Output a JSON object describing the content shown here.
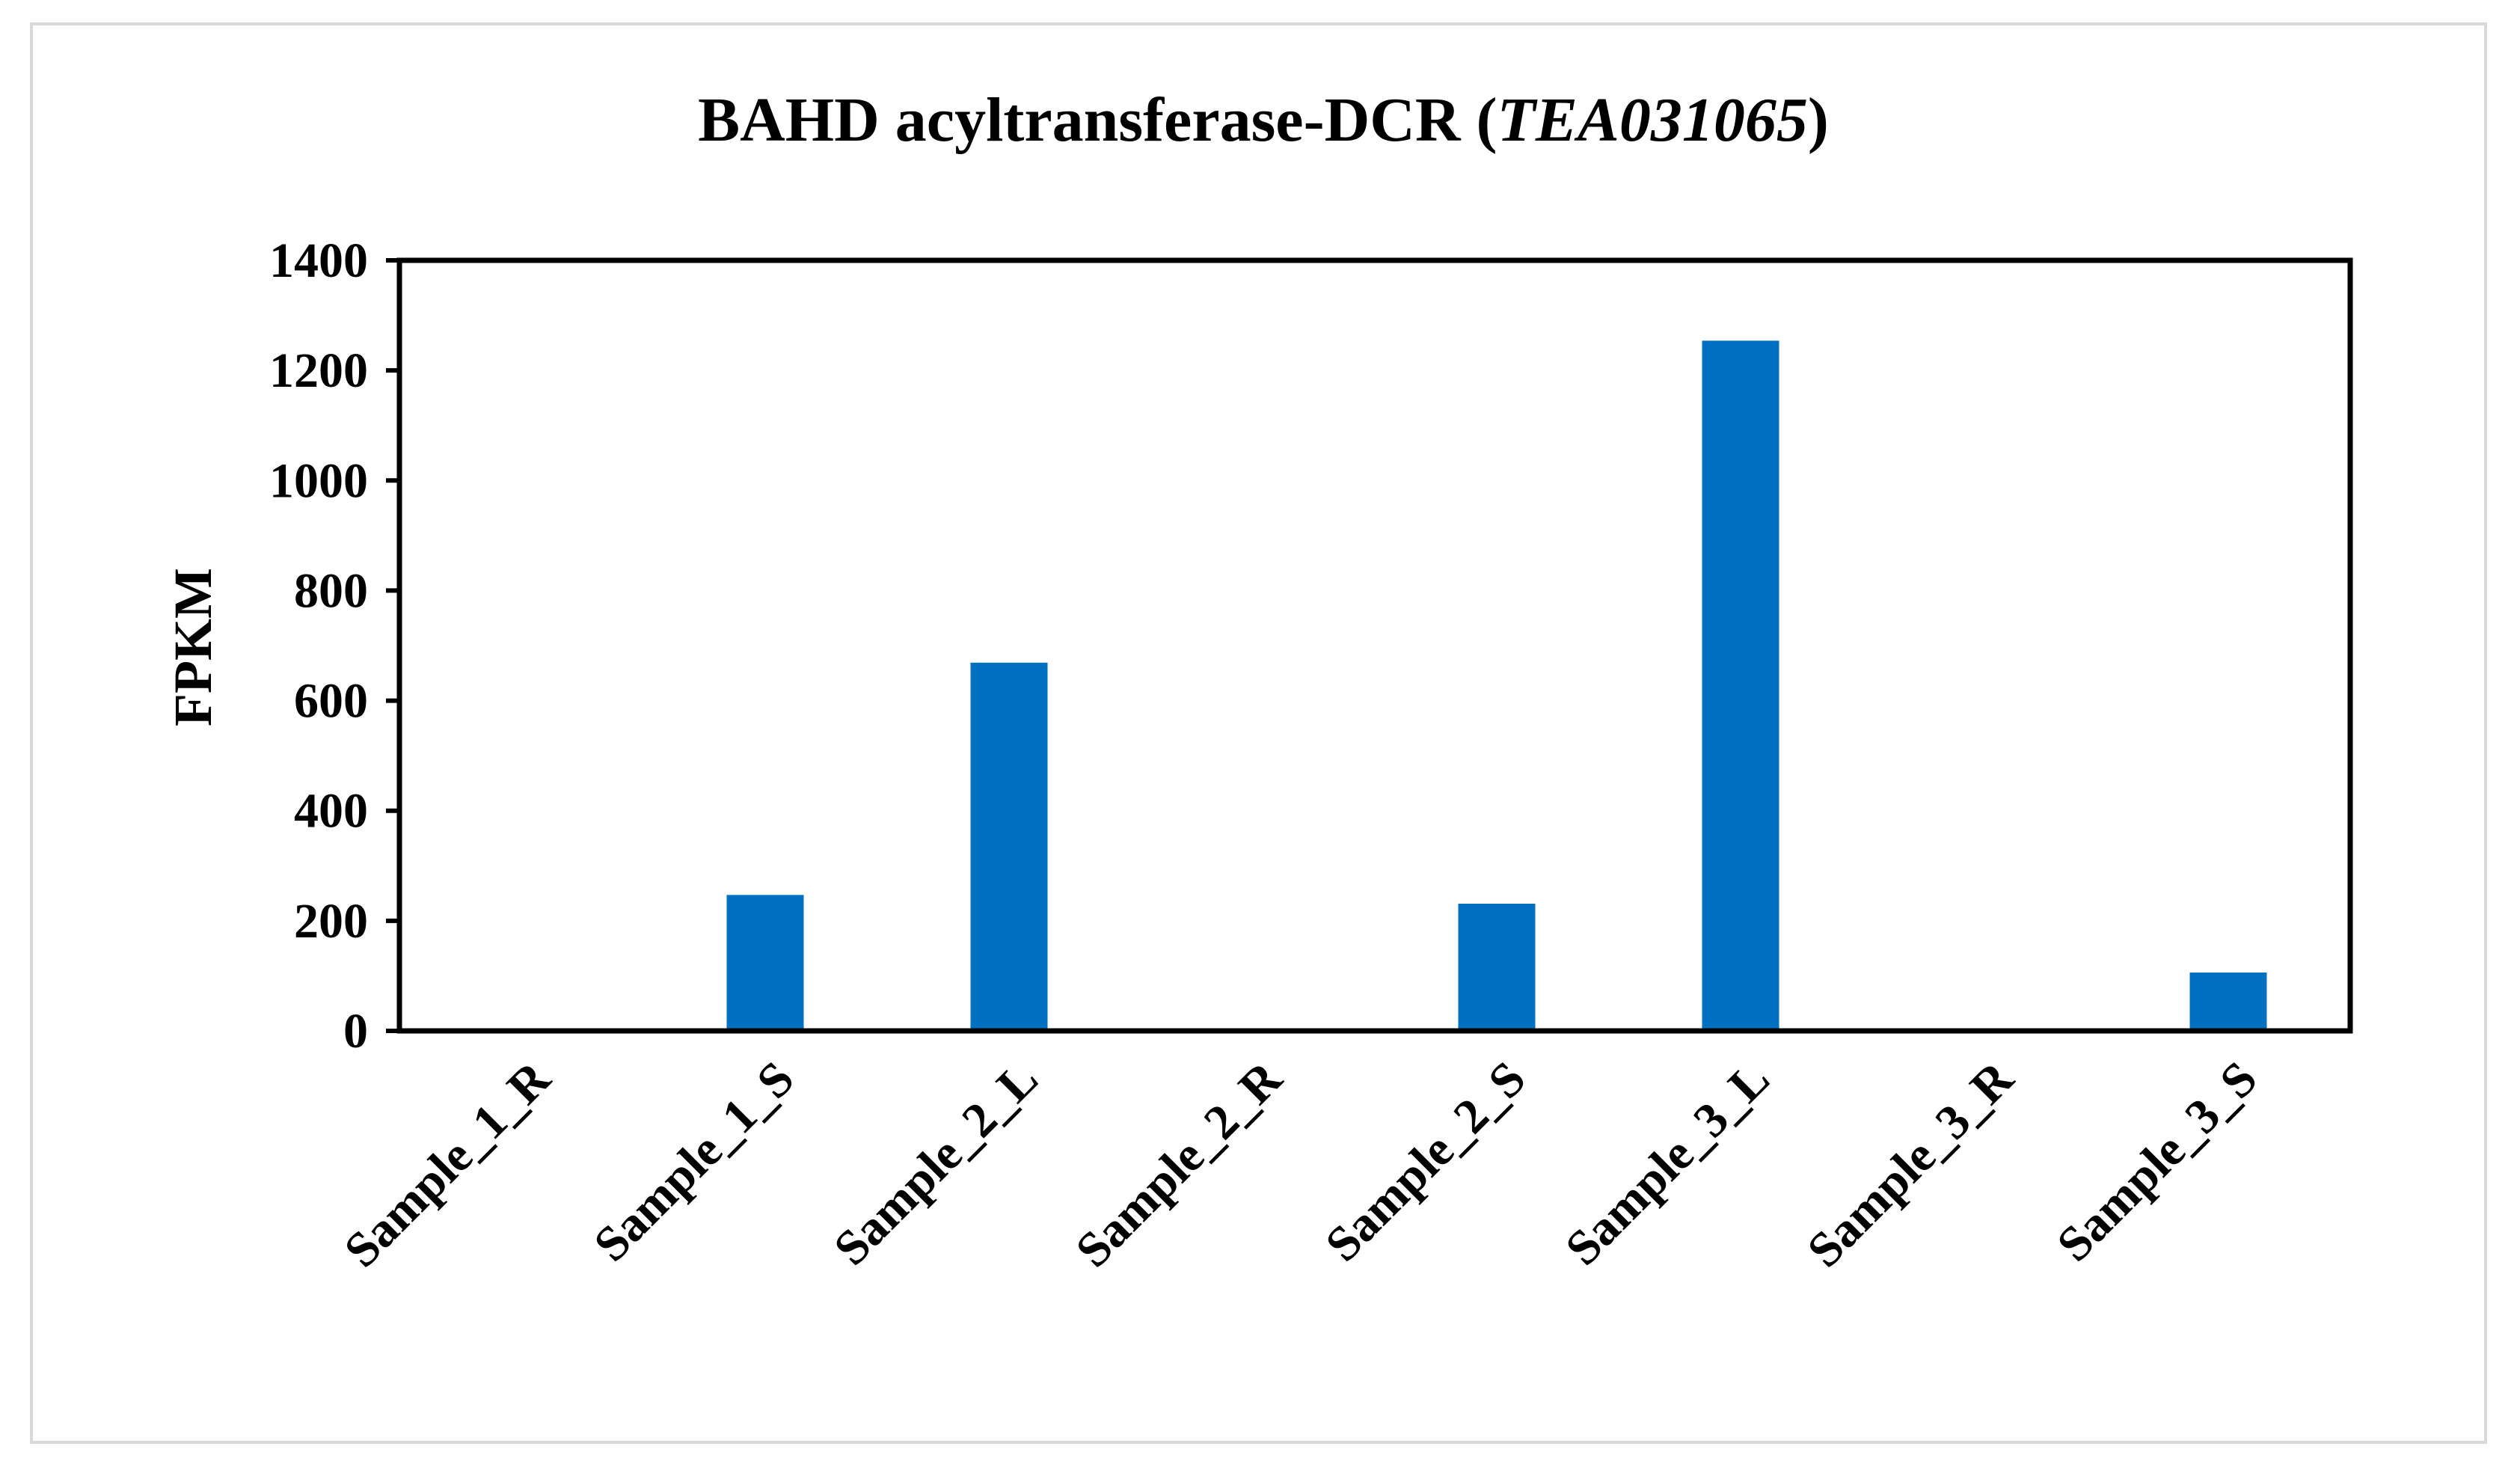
{
  "chart_data": {
    "type": "bar",
    "title": "BAHD acyltransferase-DCR (",
    "title_italic": "TEA031065",
    "title_suffix": ")",
    "xlabel": "",
    "ylabel": "FPKM",
    "categories": [
      "Sample_1_R",
      "Sample_1_S",
      "Sample_2_L",
      "Sample_2_R",
      "Sample_2_S",
      "Sample_3_L",
      "Sample_3_R",
      "Sample_3_S"
    ],
    "values": [
      0,
      247,
      669,
      0,
      231,
      1254,
      0,
      106
    ],
    "ylim": [
      0,
      1400
    ],
    "yticks": [
      "0",
      "200",
      "400",
      "600",
      "800",
      "1000",
      "1200",
      "1400"
    ],
    "grid": false,
    "legend": "none",
    "bar_color": "#0070c0",
    "axis_color": "#000000",
    "frame_color": "#d9d9d9"
  }
}
